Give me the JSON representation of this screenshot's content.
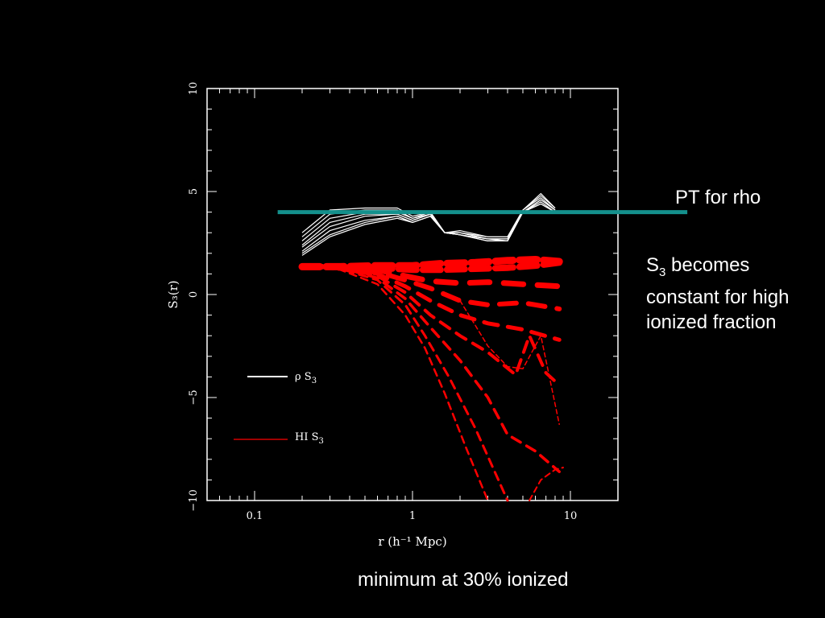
{
  "chart_data": {
    "type": "line",
    "xlabel": "r (h⁻¹ Mpc)",
    "ylabel": "S₃(r)",
    "xscale": "log",
    "xlim": [
      0.05,
      20
    ],
    "ylim": [
      -10,
      10
    ],
    "xticks": [
      {
        "value": 0.1,
        "label": "0.1"
      },
      {
        "value": 1,
        "label": "1"
      },
      {
        "value": 10,
        "label": "10"
      }
    ],
    "yticks": [
      {
        "value": 10,
        "label": "10"
      },
      {
        "value": 5,
        "label": "5"
      },
      {
        "value": 0,
        "label": "0"
      },
      {
        "value": -5,
        "label": "−5"
      },
      {
        "value": -10,
        "label": "−10"
      }
    ],
    "grid": false,
    "legend": {
      "placement": "bottom-left",
      "entries": [
        {
          "label_main": "ρ S",
          "label_sub": "3",
          "color": "#ffffff"
        },
        {
          "label_main": "HI S",
          "label_sub": "3",
          "color": "#ff0000"
        }
      ]
    },
    "reference_line": {
      "label": "PT for rho",
      "y": 4.0,
      "x_start": 0.14,
      "x_end": 55,
      "color": "#14908c"
    },
    "colors": {
      "rho": "#ffffff",
      "hi": "#ff0000",
      "reference": "#14908c"
    },
    "series_rho": [
      {
        "x": [
          0.2,
          0.3,
          0.5,
          0.8,
          1.0,
          1.3,
          1.6,
          2.0,
          3.0,
          4.0,
          5.0,
          6.5,
          8.0
        ],
        "y": [
          3.0,
          4.1,
          4.2,
          4.2,
          3.8,
          4.0,
          3.0,
          3.1,
          2.8,
          2.8,
          4.1,
          4.9,
          4.2
        ]
      },
      {
        "x": [
          0.2,
          0.3,
          0.5,
          0.8,
          1.0,
          1.3,
          1.6,
          2.0,
          3.0,
          4.0,
          5.0,
          6.5,
          8.0
        ],
        "y": [
          2.8,
          3.9,
          4.1,
          4.1,
          3.7,
          4.0,
          3.0,
          3.0,
          2.8,
          2.8,
          4.1,
          4.8,
          4.2
        ]
      },
      {
        "x": [
          0.2,
          0.3,
          0.5,
          0.8,
          1.0,
          1.3,
          1.6,
          2.0,
          3.0,
          4.0,
          5.0,
          6.5,
          8.0
        ],
        "y": [
          2.6,
          3.7,
          4.0,
          4.0,
          3.7,
          3.9,
          3.0,
          3.0,
          2.7,
          2.7,
          4.1,
          4.7,
          4.1
        ]
      },
      {
        "x": [
          0.2,
          0.3,
          0.5,
          0.8,
          1.0,
          1.3,
          1.6,
          2.0,
          3.0,
          4.0,
          5.0,
          6.5,
          8.0
        ],
        "y": [
          2.4,
          3.5,
          3.9,
          3.9,
          3.6,
          3.9,
          3.0,
          3.0,
          2.7,
          2.7,
          4.0,
          4.6,
          4.1
        ]
      },
      {
        "x": [
          0.2,
          0.3,
          0.5,
          0.8,
          1.0,
          1.3,
          1.6,
          2.0,
          3.0,
          4.0,
          5.0,
          6.5,
          8.0
        ],
        "y": [
          2.3,
          3.3,
          3.8,
          3.9,
          3.6,
          3.9,
          3.0,
          2.9,
          2.7,
          2.6,
          4.0,
          4.6,
          4.1
        ]
      },
      {
        "x": [
          0.2,
          0.3,
          0.5,
          0.8,
          1.0,
          1.3,
          1.6,
          2.0,
          3.0,
          4.0,
          5.0,
          6.5,
          8.0
        ],
        "y": [
          2.1,
          3.1,
          3.6,
          3.8,
          3.5,
          3.8,
          3.0,
          2.9,
          2.6,
          2.6,
          4.0,
          4.5,
          4.0
        ]
      },
      {
        "x": [
          0.2,
          0.3,
          0.5,
          0.8,
          1.0,
          1.3,
          1.6,
          2.0,
          3.0,
          4.0,
          5.0,
          6.5,
          8.0
        ],
        "y": [
          2.0,
          2.9,
          3.5,
          3.8,
          3.5,
          3.8,
          3.0,
          2.9,
          2.6,
          2.6,
          4.0,
          4.4,
          4.0
        ]
      },
      {
        "x": [
          0.2,
          0.3,
          0.5,
          0.8,
          1.0,
          1.3,
          1.6,
          2.0,
          3.0,
          4.0,
          5.0,
          6.5,
          8.0
        ],
        "y": [
          1.9,
          2.8,
          3.4,
          3.7,
          3.5,
          3.8,
          3.0,
          2.9,
          2.6,
          2.6,
          4.0,
          4.4,
          4.0
        ]
      }
    ],
    "series_hi": [
      {
        "x": [
          0.2,
          0.35,
          0.6,
          1.0,
          1.5,
          2.5,
          4.0,
          6.0,
          8.5
        ],
        "y": [
          1.35,
          1.35,
          1.4,
          1.4,
          1.5,
          1.55,
          1.65,
          1.7,
          1.6
        ]
      },
      {
        "x": [
          0.2,
          0.35,
          0.6,
          1.0,
          1.5,
          2.5,
          4.0,
          6.0,
          8.5
        ],
        "y": [
          1.35,
          1.35,
          1.3,
          1.2,
          1.2,
          1.25,
          1.3,
          1.4,
          1.55
        ]
      },
      {
        "x": [
          0.2,
          0.35,
          0.6,
          0.9,
          1.3,
          2.0,
          3.0,
          5.0,
          8.5
        ],
        "y": [
          1.35,
          1.35,
          1.2,
          0.9,
          0.65,
          0.55,
          0.6,
          0.5,
          0.4
        ]
      },
      {
        "x": [
          0.2,
          0.35,
          0.6,
          0.9,
          1.3,
          2.0,
          3.0,
          5.0,
          8.5
        ],
        "y": [
          1.35,
          1.35,
          1.1,
          0.7,
          0.3,
          -0.3,
          -0.5,
          -0.4,
          -0.7
        ]
      },
      {
        "x": [
          0.2,
          0.35,
          0.6,
          0.9,
          1.3,
          2.0,
          3.0,
          5.0,
          8.5
        ],
        "y": [
          1.35,
          1.3,
          1.0,
          0.4,
          -0.3,
          -1.0,
          -1.4,
          -1.7,
          -2.2
        ]
      },
      {
        "x": [
          0.2,
          0.35,
          0.6,
          0.9,
          1.3,
          2.0,
          3.0,
          4.5,
          5.5,
          7.0,
          8.5
        ],
        "y": [
          1.35,
          1.3,
          0.9,
          0.1,
          -1.0,
          -2.0,
          -2.8,
          -3.9,
          -2.0,
          -3.8,
          -4.4
        ]
      },
      {
        "x": [
          0.2,
          0.35,
          0.6,
          0.9,
          1.3,
          2.0,
          3.0,
          4.0,
          6.0,
          8.5
        ],
        "y": [
          1.35,
          1.3,
          0.8,
          -0.2,
          -1.6,
          -3.2,
          -5.0,
          -6.8,
          -7.6,
          -8.6
        ]
      },
      {
        "x": [
          0.2,
          0.35,
          0.6,
          0.9,
          1.2,
          1.7,
          2.5,
          3.5,
          4.0
        ],
        "y": [
          1.35,
          1.25,
          0.7,
          -0.5,
          -2.0,
          -4.0,
          -6.5,
          -9.0,
          -10.0
        ]
      },
      {
        "x": [
          0.2,
          0.35,
          0.6,
          0.9,
          1.2,
          1.6,
          2.2,
          3.0
        ],
        "y": [
          1.35,
          1.2,
          0.5,
          -1.0,
          -2.6,
          -4.8,
          -7.5,
          -10.0
        ]
      },
      {
        "x": [
          2.0,
          2.5,
          3.0,
          4.0,
          5.0,
          6.5,
          8.5
        ],
        "y": [
          -0.3,
          -1.5,
          -2.5,
          -3.5,
          -3.6,
          -2.0,
          -6.3
        ]
      },
      {
        "x": [
          5.5,
          6.5,
          8.0,
          9.0
        ],
        "y": [
          -10.0,
          -9.0,
          -8.5,
          -8.4
        ]
      }
    ]
  },
  "annotations": {
    "pt_label": "PT for rho",
    "const_sym": "S",
    "const_sub": "3",
    "const_rest": " becomes constant for high ionized fraction",
    "minimum": "minimum at 30% ionized"
  }
}
